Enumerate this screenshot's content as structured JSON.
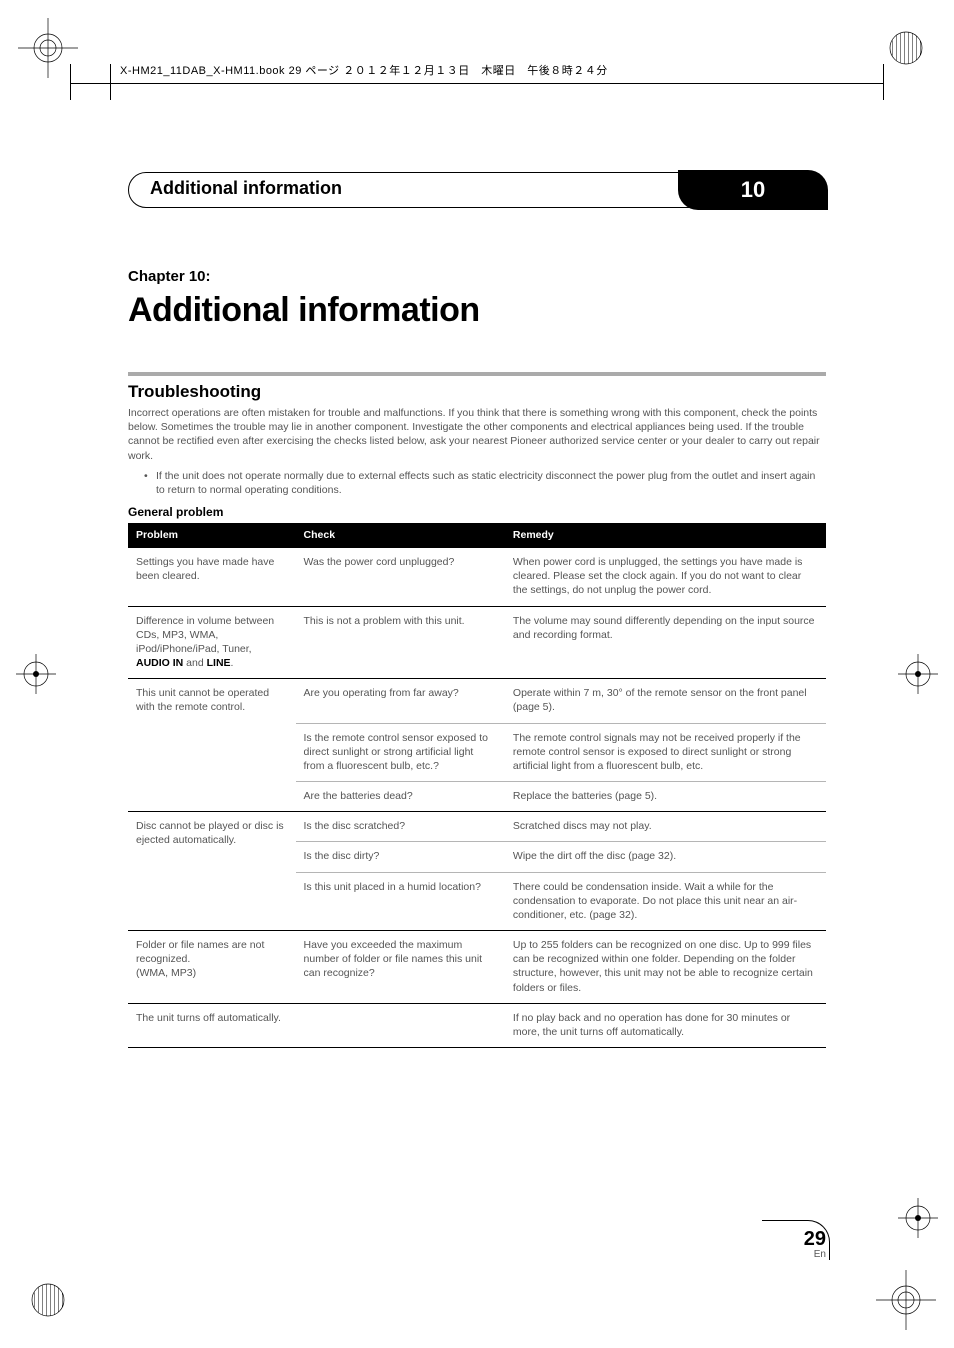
{
  "printer_mark_text": "X-HM21_11DAB_X-HM11.book  29 ページ  ２０１２年１２月１３日　木曜日　午後８時２４分",
  "header": {
    "title": "Additional information",
    "chapter_number": "10"
  },
  "chapter": {
    "label": "Chapter 10:",
    "title": "Additional information"
  },
  "section": {
    "title": "Troubleshooting",
    "intro": "Incorrect operations are often mistaken for trouble and malfunctions. If you think that there is something wrong with this component, check the points below. Sometimes the trouble may lie in another component. Investigate the other components and electrical appliances being used. If the trouble cannot be rectified even after exercising the checks listed below, ask your nearest Pioneer authorized service center or your dealer to carry out repair work.",
    "bullet": "If the unit does not operate normally due to external effects such as static electricity disconnect the power plug from the outlet and insert again to return to normal operating conditions.",
    "subhead": "General problem"
  },
  "table": {
    "headers": {
      "problem": "Problem",
      "check": "Check",
      "remedy": "Remedy"
    },
    "rows": [
      {
        "problem": "Settings you have made have been cleared.",
        "check": "Was the power cord unplugged?",
        "remedy": "When power cord is unplugged, the settings you have made is cleared. Please set the clock again. If you do not want to clear the settings, do not unplug the power cord."
      },
      {
        "problem_html": "Difference in volume between CDs, MP3, WMA, iPod/iPhone/iPad, Tuner, <b>AUDIO IN</b> and <b>LINE</b>.",
        "check": "This is not a problem with this unit.",
        "remedy": "The volume may sound differently depending on the input source and recording format."
      },
      {
        "problem": "This unit cannot be operated with the remote control.",
        "rowspan": 3,
        "check": "Are you operating from far away?",
        "remedy": "Operate within 7 m, 30° of the remote sensor on the front panel (page 5)."
      },
      {
        "check": "Is the remote control sensor exposed to direct sunlight or strong artificial light from a fluorescent bulb, etc.?",
        "remedy": "The remote control signals may not be received properly if the remote control sensor is exposed to direct sunlight or strong artificial light from a fluorescent bulb, etc."
      },
      {
        "check": "Are the batteries dead?",
        "remedy": "Replace the batteries (page 5)."
      },
      {
        "problem": "Disc cannot be played or disc is ejected automatically.",
        "rowspan": 3,
        "check": "Is the disc scratched?",
        "remedy": "Scratched discs may not play."
      },
      {
        "check": "Is the disc dirty?",
        "remedy": "Wipe the dirt off the disc (page 32)."
      },
      {
        "check": "Is this unit placed in a humid location?",
        "remedy": "There could be condensation inside. Wait a while for the condensation to evaporate. Do not place this unit near an air-conditioner, etc. (page 32)."
      },
      {
        "problem": "Folder or file names are not recognized.\n(WMA, MP3)",
        "check": "Have you exceeded the maximum number of folder or file names this unit can recognize?",
        "remedy": "Up to 255 folders can be recognized on one disc. Up to 999 files can be recognized within one folder. Depending on the folder structure, however, this unit may not be able to recognize certain folders or files."
      },
      {
        "problem": "The unit turns off automatically.",
        "check": "",
        "remedy": "If no play back and no operation has done for 30 minutes or more, the unit turns off automatically."
      }
    ]
  },
  "page_number": {
    "num": "29",
    "lang": "En"
  },
  "colors": {
    "header_bg": "#000000",
    "grey_text": "#555555",
    "light_rule": "#b5b5b5",
    "section_rule": "#aaaaaa"
  }
}
